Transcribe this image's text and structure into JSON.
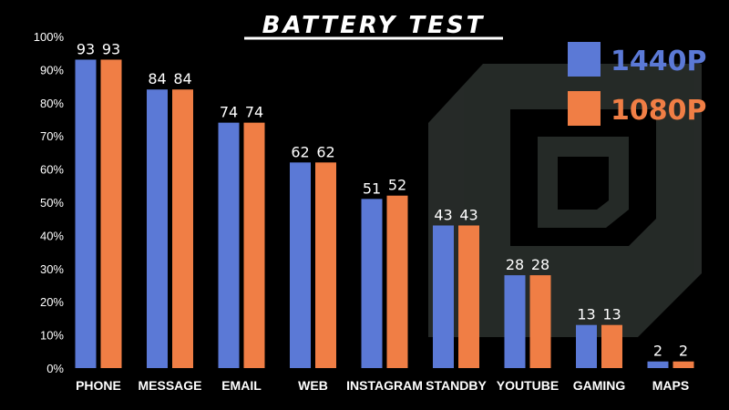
{
  "chart_data": {
    "type": "bar",
    "title": "BATTERY TEST",
    "categories": [
      "PHONE",
      "MESSAGE",
      "EMAIL",
      "WEB",
      "INSTAGRAM",
      "STANDBY",
      "YOUTUBE",
      "GAMING",
      "MAPS"
    ],
    "series": [
      {
        "name": "1440P",
        "color": "#5b79d6",
        "values": [
          93,
          84,
          74,
          62,
          51,
          43,
          28,
          13,
          2
        ]
      },
      {
        "name": "1080P",
        "color": "#f07e45",
        "values": [
          93,
          84,
          74,
          62,
          52,
          43,
          28,
          13,
          2
        ]
      }
    ],
    "yticks": [
      "0%",
      "10%",
      "20%",
      "30%",
      "40%",
      "50%",
      "60%",
      "70%",
      "80%",
      "90%",
      "100%"
    ],
    "ylim": [
      0,
      100
    ],
    "legend_position": "top-right",
    "grid": false,
    "data_labels": true
  }
}
